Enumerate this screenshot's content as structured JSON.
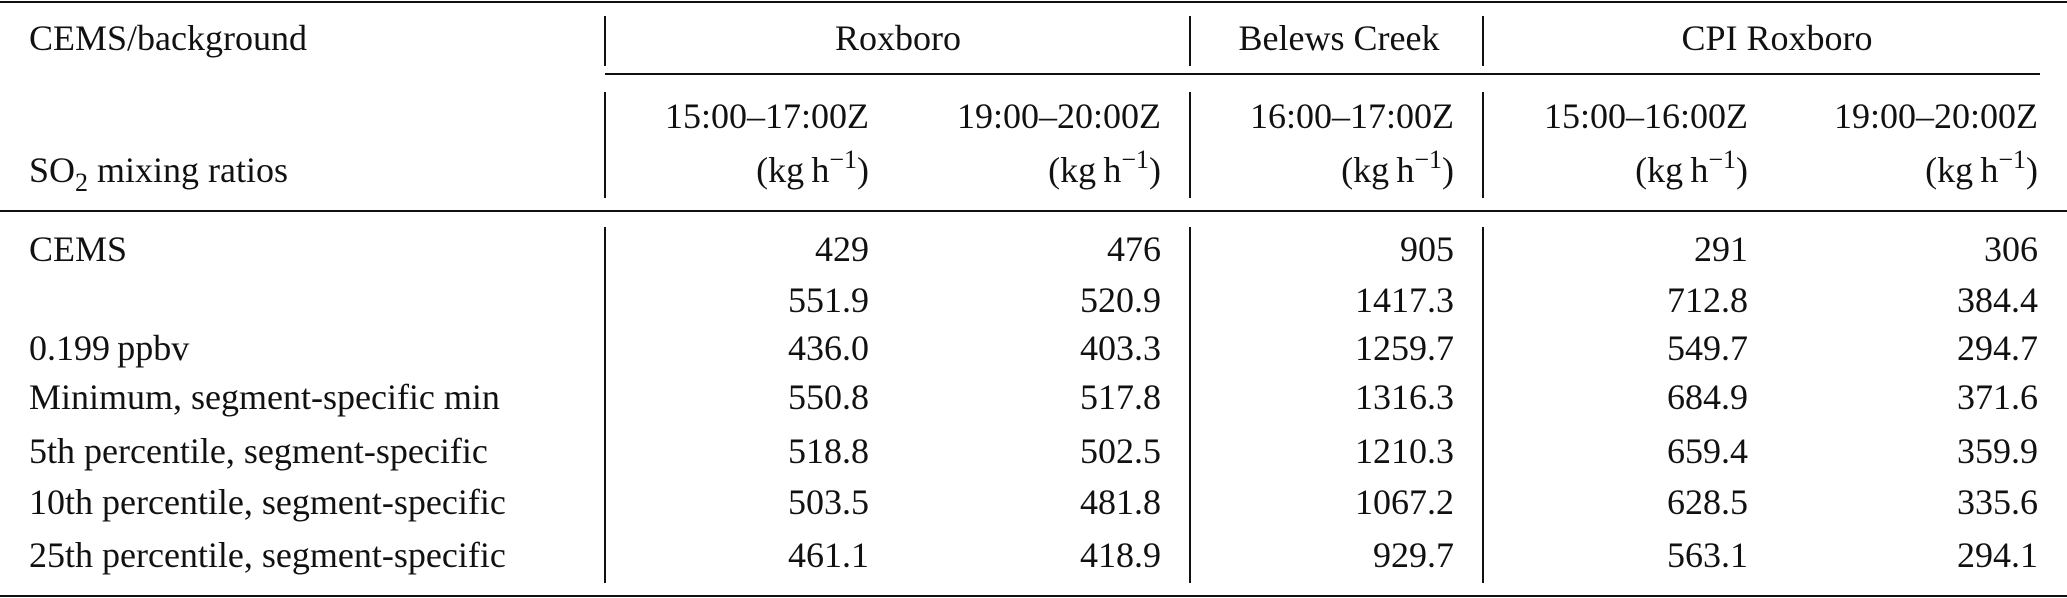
{
  "table": {
    "header": {
      "corner": "CEMS/background",
      "groups": [
        "Roxboro",
        "Belews Creek",
        "CPI Roxboro"
      ],
      "row_label": {
        "text": "SO",
        "subscript": "2",
        "rest": " mixing ratios"
      },
      "columns": [
        {
          "time": "15:00–17:00Z",
          "unit": {
            "text": "(kg h",
            "superscript": "−1",
            "close": ")"
          }
        },
        {
          "time": "19:00–20:00Z",
          "unit": {
            "text": "(kg h",
            "superscript": "−1",
            "close": ")"
          }
        },
        {
          "time": "16:00–17:00Z",
          "unit": {
            "text": "(kg h",
            "superscript": "−1",
            "close": ")"
          }
        },
        {
          "time": "15:00–16:00Z",
          "unit": {
            "text": "(kg h",
            "superscript": "−1",
            "close": ")"
          }
        },
        {
          "time": "19:00–20:00Z",
          "unit": {
            "text": "(kg h",
            "superscript": "−1",
            "close": ")"
          }
        }
      ]
    },
    "rows": [
      {
        "label": "CEMS",
        "values": [
          "429",
          "476",
          "905",
          "291",
          "306"
        ]
      },
      {
        "label": null,
        "values": [
          "551.9",
          "520.9",
          "1417.3",
          "712.8",
          "384.4"
        ]
      },
      {
        "label": "0.199 ppbv",
        "values": [
          "436.0",
          "403.3",
          "1259.7",
          "549.7",
          "294.7"
        ]
      },
      {
        "label": "Minimum, segment-specific min",
        "values": [
          "550.8",
          "517.8",
          "1316.3",
          "684.9",
          "371.6"
        ]
      },
      {
        "label": "5th percentile, segment-specific",
        "values": [
          "518.8",
          "502.5",
          "1210.3",
          "659.4",
          "359.9"
        ]
      },
      {
        "label": "10th percentile, segment-specific",
        "values": [
          "503.5",
          "481.8",
          "1067.2",
          "628.5",
          "335.6"
        ]
      },
      {
        "label": "25th percentile, segment-specific",
        "values": [
          "461.1",
          "418.9",
          "929.7",
          "563.1",
          "294.1"
        ]
      }
    ]
  }
}
